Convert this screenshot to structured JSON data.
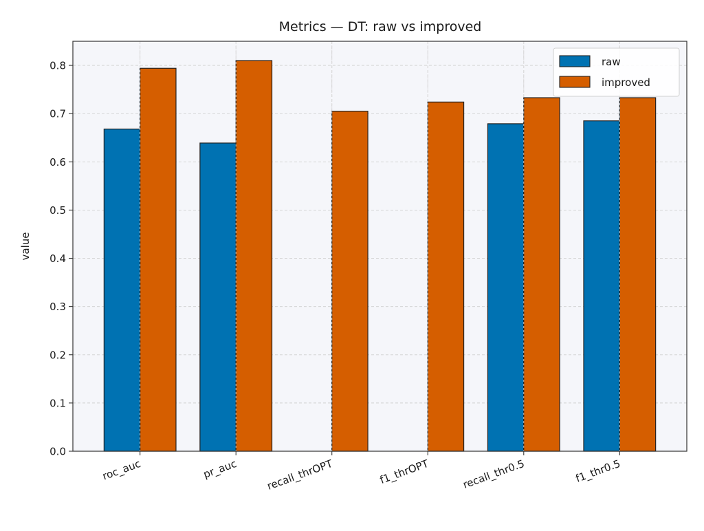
{
  "chart_data": {
    "type": "bar",
    "title": "Metrics — DT: raw vs improved",
    "xlabel": "",
    "ylabel": "value",
    "categories": [
      "roc_auc",
      "pr_auc",
      "recall_thrOPT",
      "f1_thrOPT",
      "recall_thr0.5",
      "f1_thr0.5"
    ],
    "series": [
      {
        "name": "raw",
        "color": "#0072b2",
        "values": [
          0.668,
          0.639,
          0,
          0,
          0.679,
          0.685
        ]
      },
      {
        "name": "improved",
        "color": "#d55e00",
        "values": [
          0.794,
          0.81,
          0.705,
          0.724,
          0.733,
          0.733
        ]
      }
    ],
    "ylim": [
      0,
      0.85
    ],
    "yticks": [
      "0.0",
      "0.1",
      "0.2",
      "0.3",
      "0.4",
      "0.5",
      "0.6",
      "0.7",
      "0.8"
    ],
    "grid": true,
    "legend": "top-right",
    "plot_background": "#f5f6fa",
    "edge_color": "#222222"
  }
}
